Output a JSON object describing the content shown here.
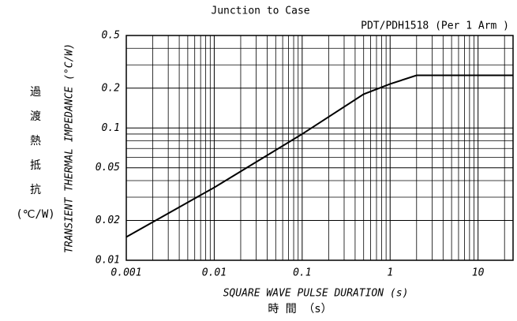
{
  "chart_data": {
    "type": "line",
    "title": "Junction to Case",
    "subtitle": "PDT/PDH1518 (Per 1 Arm )",
    "x_label": "SQUARE WAVE PULSE DURATION (s)",
    "x_label_ja": "時 間 （s）",
    "y_label": "TRANSIENT THERMAL IMPEDANCE (°C/W)",
    "y_label_ja": [
      "過",
      "渡",
      "熱",
      "抵",
      "抗",
      "(℃/W)"
    ],
    "log_x": true,
    "log_y": true,
    "grid": true,
    "x": [
      0.001,
      0.01,
      0.1,
      0.5,
      1,
      2,
      25
    ],
    "series": [
      {
        "name": "Junction to Case",
        "color": "#000000",
        "values": [
          0.015,
          0.0355,
          0.09,
          0.18,
          0.215,
          0.25,
          0.25
        ]
      }
    ],
    "xlim": [
      0.001,
      25
    ],
    "ylim": [
      0.01,
      0.5
    ],
    "xticks": [
      0.001,
      0.01,
      0.1,
      1,
      10
    ],
    "yticks": [
      0.01,
      0.02,
      0.05,
      0.1,
      0.2,
      0.5
    ],
    "x_minor_ticks": [
      0.002,
      0.003,
      0.004,
      0.005,
      0.006,
      0.007,
      0.008,
      0.009,
      0.02,
      0.03,
      0.04,
      0.05,
      0.06,
      0.07,
      0.08,
      0.09,
      0.2,
      0.3,
      0.4,
      0.5,
      0.6,
      0.7,
      0.8,
      0.9,
      2,
      3,
      4,
      5,
      6,
      7,
      8,
      9,
      20
    ],
    "y_minor_ticks": [
      0.03,
      0.04,
      0.06,
      0.07,
      0.08,
      0.09,
      0.3,
      0.4
    ]
  }
}
